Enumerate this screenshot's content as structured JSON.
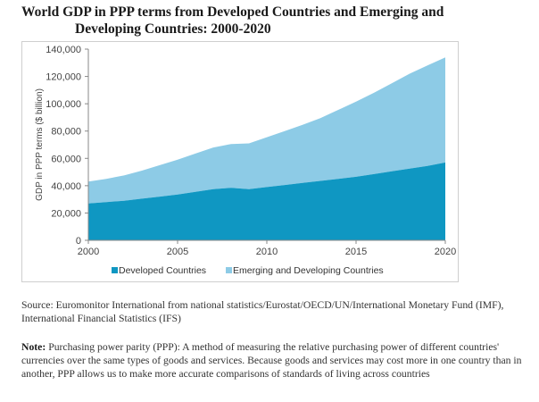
{
  "title_line1": "World GDP in PPP terms from Developed Countries and Emerging and",
  "title_line2": "Developing Countries: 2000-2020",
  "source_text": "Source: Euromonitor International from national statistics/Eurostat/OECD/UN/International Monetary Fund (IMF), International Financial Statistics (IFS)",
  "note_label": "Note:",
  "note_text": " Purchasing power parity (PPP): A method of measuring the relative purchasing power of different countries' currencies over the same types of goods and services. Because goods and services may cost more in one country than in another, PPP allows us to make more accurate comparisons of standards of living across countries",
  "colors": {
    "developed": "#0f97c2",
    "emerging": "#8dcbe6",
    "axis": "#888888"
  },
  "chart_data": {
    "type": "area",
    "stacked": true,
    "ylabel": "GDP in PPP terms ($ billion)",
    "xlabel": "",
    "ylim": [
      0,
      140000
    ],
    "yticks": [
      0,
      20000,
      40000,
      60000,
      80000,
      100000,
      120000,
      140000
    ],
    "ytick_labels": [
      "0",
      "20,000",
      "40,000",
      "60,000",
      "80,000",
      "100,000",
      "120,000",
      "140,000"
    ],
    "xlim": [
      2000,
      2020
    ],
    "xticks": [
      2000,
      2005,
      2010,
      2015,
      2020
    ],
    "xtick_labels": [
      "2000",
      "2005",
      "2010",
      "2015",
      "2020"
    ],
    "grid": true,
    "legend_position": "bottom",
    "x": [
      2000,
      2001,
      2002,
      2003,
      2004,
      2005,
      2006,
      2007,
      2008,
      2009,
      2010,
      2011,
      2012,
      2013,
      2014,
      2015,
      2016,
      2017,
      2018,
      2019,
      2020
    ],
    "series": [
      {
        "name": "Developed Countries",
        "values": [
          27000,
          28000,
          29000,
          30500,
          32000,
          33500,
          35500,
          37500,
          38500,
          37500,
          39000,
          40500,
          42000,
          43500,
          45000,
          46500,
          48500,
          50500,
          52500,
          54500,
          57000
        ]
      },
      {
        "name": "Emerging and Developing Countries",
        "values": [
          16000,
          17000,
          18500,
          20500,
          23000,
          25500,
          28000,
          30500,
          32000,
          33500,
          36500,
          39500,
          42500,
          46000,
          50500,
          55000,
          59500,
          64500,
          69500,
          73500,
          77000
        ]
      }
    ]
  }
}
